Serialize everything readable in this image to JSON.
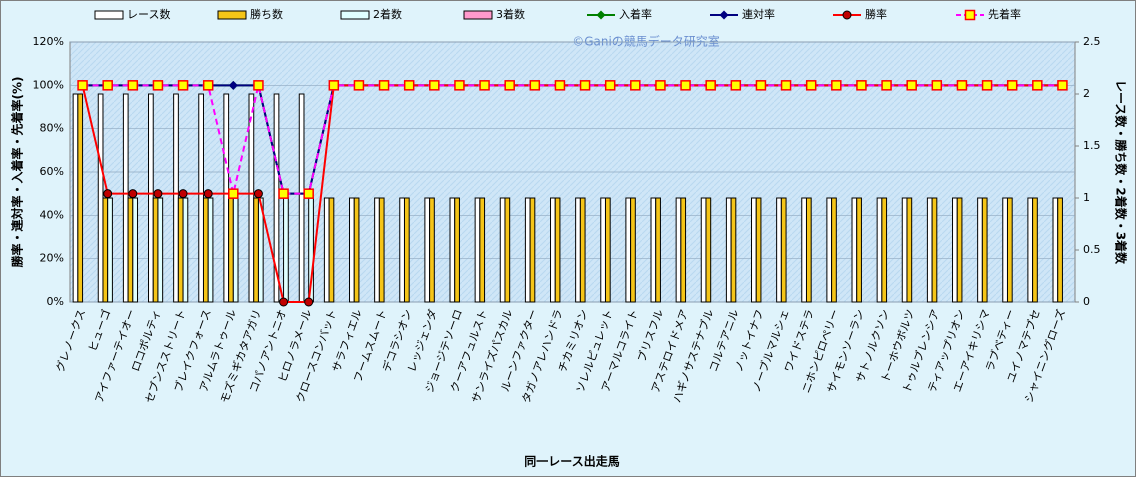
{
  "chart_data": {
    "type": "combo",
    "watermark": "©Ganiの競馬データ研究室",
    "ylabel": "勝率・連対率・入着率・先着率(%)",
    "y2label": "レース数・勝ち数・2着数・3着数",
    "xlabel": "同一レース出走馬",
    "categories": [
      "グレノークス",
      "ヒューゴ",
      "アイファーテイオー",
      "ロコポルティ",
      "セブンスストリート",
      "ブレイクフォース",
      "アルムラトゥール",
      "モズミギカタアガリ",
      "コパノアントニオ",
      "ヒロノラメール",
      "クロースコンバット",
      "サラフィエル",
      "フームスムート",
      "デコラシオン",
      "レッジェンダ",
      "ジョージテソーロ",
      "クーアフュルスト",
      "サンライズパスカル",
      "ルーンファクター",
      "タガノアレハンドラ",
      "チカミリオン",
      "ソレルピュレット",
      "アーマルコライト",
      "ブリスフル",
      "アステロイドメア",
      "ハギノサステナブル",
      "コルテアニル",
      "ノットイナフ",
      "ノーブルマルシェ",
      "ワイドステラ",
      "ニホンピロペリー",
      "サイモンソーラン",
      "サトノルクソン",
      "トーホウボルツ",
      "トゥルブレンシア",
      "ティアップリオン",
      "エーアイキリシマ",
      "ラブベティー",
      "ユイノマテブセ",
      "シャイニングローズ"
    ],
    "series": [
      {
        "name": "レース数",
        "type": "bar",
        "axis": "y2",
        "color": "#ffffff",
        "values": [
          2,
          2,
          2,
          2,
          2,
          2,
          2,
          2,
          2,
          2,
          1,
          1,
          1,
          1,
          1,
          1,
          1,
          1,
          1,
          1,
          1,
          1,
          1,
          1,
          1,
          1,
          1,
          1,
          1,
          1,
          1,
          1,
          1,
          1,
          1,
          1,
          1,
          1,
          1,
          1
        ]
      },
      {
        "name": "勝ち数",
        "type": "bar",
        "axis": "y2",
        "color": "#f5c518",
        "values": [
          2,
          1,
          1,
          1,
          1,
          1,
          1,
          1,
          0,
          0,
          1,
          1,
          1,
          1,
          1,
          1,
          1,
          1,
          1,
          1,
          1,
          1,
          1,
          1,
          1,
          1,
          1,
          1,
          1,
          1,
          1,
          1,
          1,
          1,
          1,
          1,
          1,
          1,
          1,
          1
        ]
      },
      {
        "name": "2着数",
        "type": "bar",
        "axis": "y2",
        "color": "#e0ffff",
        "values": [
          0,
          1,
          1,
          1,
          1,
          1,
          1,
          1,
          1,
          1,
          0,
          0,
          0,
          0,
          0,
          0,
          0,
          0,
          0,
          0,
          0,
          0,
          0,
          0,
          0,
          0,
          0,
          0,
          0,
          0,
          0,
          0,
          0,
          0,
          0,
          0,
          0,
          0,
          0,
          0
        ]
      },
      {
        "name": "3着数",
        "type": "bar",
        "axis": "y2",
        "color": "#ff99cc",
        "values": [
          0,
          0,
          0,
          0,
          0,
          0,
          0,
          0,
          0,
          0,
          0,
          0,
          0,
          0,
          0,
          0,
          0,
          0,
          0,
          0,
          0,
          0,
          0,
          0,
          0,
          0,
          0,
          0,
          0,
          0,
          0,
          0,
          0,
          0,
          0,
          0,
          0,
          0,
          0,
          0
        ]
      },
      {
        "name": "入着率",
        "type": "line",
        "marker": "diamond",
        "color": "#008000",
        "values": [
          100,
          100,
          100,
          100,
          100,
          100,
          100,
          100,
          50,
          50,
          100,
          100,
          100,
          100,
          100,
          100,
          100,
          100,
          100,
          100,
          100,
          100,
          100,
          100,
          100,
          100,
          100,
          100,
          100,
          100,
          100,
          100,
          100,
          100,
          100,
          100,
          100,
          100,
          100,
          100
        ]
      },
      {
        "name": "連対率",
        "type": "line",
        "marker": "diamond",
        "color": "#000080",
        "values": [
          100,
          100,
          100,
          100,
          100,
          100,
          100,
          100,
          50,
          50,
          100,
          100,
          100,
          100,
          100,
          100,
          100,
          100,
          100,
          100,
          100,
          100,
          100,
          100,
          100,
          100,
          100,
          100,
          100,
          100,
          100,
          100,
          100,
          100,
          100,
          100,
          100,
          100,
          100,
          100
        ]
      },
      {
        "name": "勝率",
        "type": "line",
        "marker": "circle",
        "color": "#ff0000",
        "values": [
          100,
          50,
          50,
          50,
          50,
          50,
          50,
          50,
          0,
          0,
          100,
          100,
          100,
          100,
          100,
          100,
          100,
          100,
          100,
          100,
          100,
          100,
          100,
          100,
          100,
          100,
          100,
          100,
          100,
          100,
          100,
          100,
          100,
          100,
          100,
          100,
          100,
          100,
          100,
          100
        ]
      },
      {
        "name": "先着率",
        "type": "line",
        "marker": "square",
        "dash": true,
        "color": "#ff00ff",
        "values": [
          100,
          100,
          100,
          100,
          100,
          100,
          50,
          100,
          50,
          50,
          100,
          100,
          100,
          100,
          100,
          100,
          100,
          100,
          100,
          100,
          100,
          100,
          100,
          100,
          100,
          100,
          100,
          100,
          100,
          100,
          100,
          100,
          100,
          100,
          100,
          100,
          100,
          100,
          100,
          100
        ]
      }
    ],
    "ylim": [
      0,
      120
    ],
    "yticks": [
      {
        "value": 0,
        "label": "0%"
      },
      {
        "value": 20,
        "label": "20%"
      },
      {
        "value": 40,
        "label": "40%"
      },
      {
        "value": 60,
        "label": "60%"
      },
      {
        "value": 80,
        "label": "80%"
      },
      {
        "value": 100,
        "label": "100%"
      },
      {
        "value": 120,
        "label": "120%"
      }
    ],
    "y2lim": [
      0,
      2.5
    ],
    "y2ticks": [
      0,
      0.5,
      1,
      1.5,
      2,
      2.5
    ],
    "grid": true
  }
}
